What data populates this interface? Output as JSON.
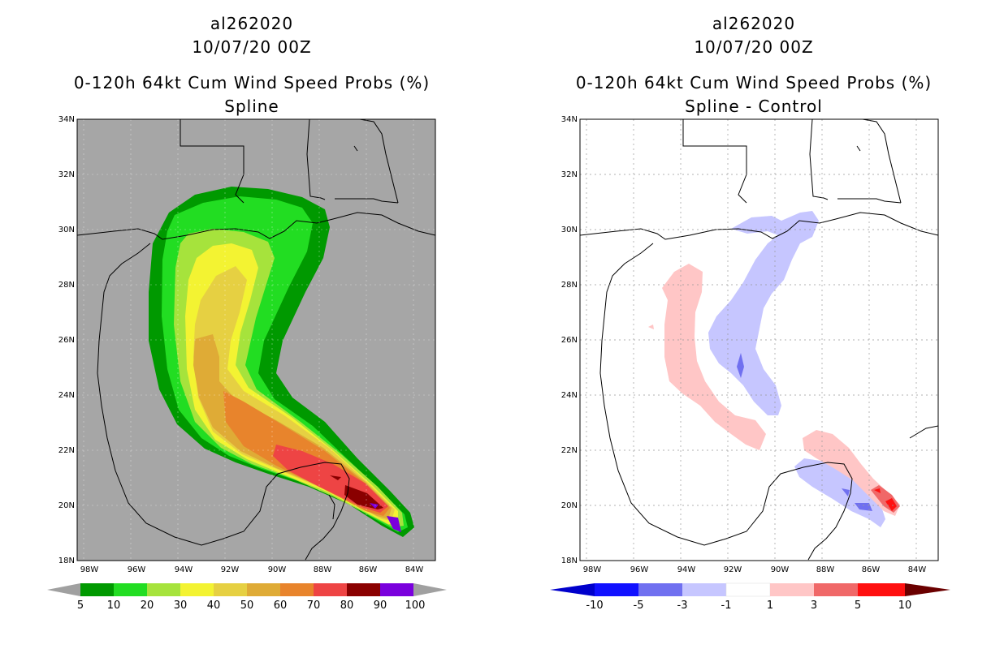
{
  "left_panel": {
    "storm_id": "al262020",
    "datetime": "10/07/20 00Z",
    "product": "0-120h 64kt Cum Wind Speed Probs (%)",
    "subtitle": "Spline",
    "lat_labels": [
      "18N",
      "20N",
      "22N",
      "24N",
      "26N",
      "28N",
      "30N",
      "32N",
      "34N"
    ],
    "lon_labels": [
      "98W",
      "96W",
      "94W",
      "92W",
      "90W",
      "88W",
      "86W",
      "84W"
    ],
    "colorbar": {
      "labels": [
        "5",
        "10",
        "20",
        "30",
        "40",
        "50",
        "60",
        "70",
        "80",
        "90",
        "100"
      ],
      "colors": [
        "#009900",
        "#22dd22",
        "#a6e33c",
        "#f3f332",
        "#e6d042",
        "#dfab36",
        "#e8842c",
        "#ee4444",
        "#8a0000",
        "#7a00dd"
      ],
      "end_color": "#a0a0a0"
    }
  },
  "right_panel": {
    "storm_id": "al262020",
    "datetime": "10/07/20 00Z",
    "product": "0-120h 64kt Cum Wind Speed Probs (%)",
    "subtitle": "Spline - Control",
    "lat_labels": [
      "18N",
      "20N",
      "22N",
      "24N",
      "26N",
      "28N",
      "30N",
      "32N",
      "34N"
    ],
    "lon_labels": [
      "98W",
      "96W",
      "94W",
      "92W",
      "90W",
      "88W",
      "86W",
      "84W"
    ],
    "colorbar": {
      "labels": [
        "-10",
        "-5",
        "-3",
        "-1",
        "1",
        "3",
        "5",
        "10"
      ],
      "colors": [
        "#0000cc",
        "#1111ff",
        "#7070f0",
        "#c6c6ff",
        "#ffffff",
        "#ffc6c6",
        "#f06868",
        "#ff1010",
        "#6b0000"
      ]
    }
  },
  "colors": {
    "land_sea": "#a6a6a6",
    "neg_light": "#c6c6ff",
    "neg_mid": "#7070f0",
    "pos_light": "#ffc6c6",
    "pos_mid": "#f06868",
    "pos_strong": "#ff1010"
  }
}
